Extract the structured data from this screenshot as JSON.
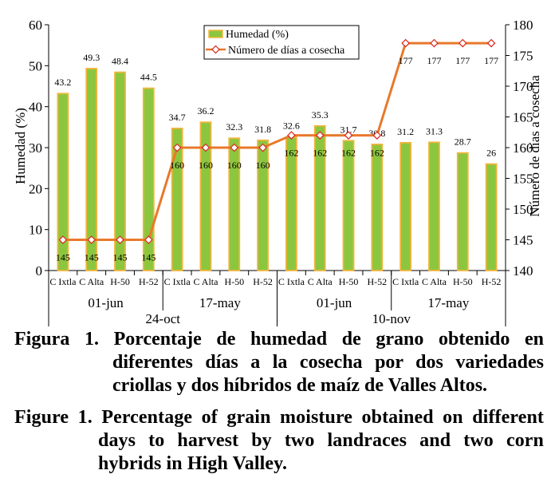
{
  "chart_data": {
    "type": "bar+line",
    "categories": [
      "C Ixtla",
      "C Alta",
      "H-50",
      "H-52",
      "C Ixtla",
      "C Alta",
      "H-50",
      "H-52",
      "C Ixtla",
      "C Alta",
      "H-50",
      "H-52",
      "C Ixtla",
      "C Alta",
      "H-50",
      "H-52"
    ],
    "date_groups": [
      "01-jun",
      "17-may",
      "01-jun",
      "17-may"
    ],
    "year_groups": [
      "24-oct",
      "10-nov"
    ],
    "bar_series": {
      "name": "Humedad (%)",
      "values": [
        43.2,
        49.3,
        48.4,
        44.5,
        34.7,
        36.2,
        32.3,
        31.8,
        32.6,
        35.3,
        31.7,
        30.8,
        31.2,
        31.3,
        28.7,
        26
      ],
      "labels": [
        "43.2",
        "49.3",
        "48.4",
        "44.5",
        "34.7",
        "36.2",
        "32.3",
        "31.8",
        "32.6",
        "35.3",
        "31.7",
        "30.8",
        "31.2",
        "31.3",
        "28.7",
        "26"
      ]
    },
    "line_series": {
      "name": "Número de días a cosecha",
      "values": [
        145,
        145,
        145,
        145,
        160,
        160,
        160,
        160,
        162,
        162,
        162,
        162,
        177,
        177,
        177,
        177
      ],
      "labels": [
        "145",
        "145",
        "145",
        "145",
        "160",
        "160",
        "160",
        "160",
        "162",
        "162",
        "162",
        "162",
        "177",
        "177",
        "177",
        "177"
      ]
    },
    "ylabel": "Humedad (%)",
    "y2label": "Número de días a cosecha",
    "ylim": [
      0,
      60
    ],
    "yticks": [
      "0",
      "10",
      "20",
      "30",
      "40",
      "50",
      "60"
    ],
    "y2lim": [
      140,
      180
    ],
    "y2ticks": [
      "140",
      "145",
      "150",
      "155",
      "160",
      "165",
      "170",
      "175",
      "180"
    ],
    "legend_position": "top-center",
    "colors": {
      "bar_fill": "#8CC63F",
      "bar_border": "#F2B53C",
      "line": "#E8792B",
      "marker_fill": "#FFFFFF",
      "marker_border": "#D9261C"
    }
  },
  "caption": {
    "es_lead": "Figura 1.",
    "es_text": "Porcentaje de humedad de grano obtenido en diferentes días a la cosecha por dos variedades criollas y dos híbridos de maíz de Valles Altos.",
    "en_lead": "Figure 1.",
    "en_text": "Percentage of grain moisture obtained on different days to harvest by two landraces and two corn hybrids in High Valley."
  }
}
